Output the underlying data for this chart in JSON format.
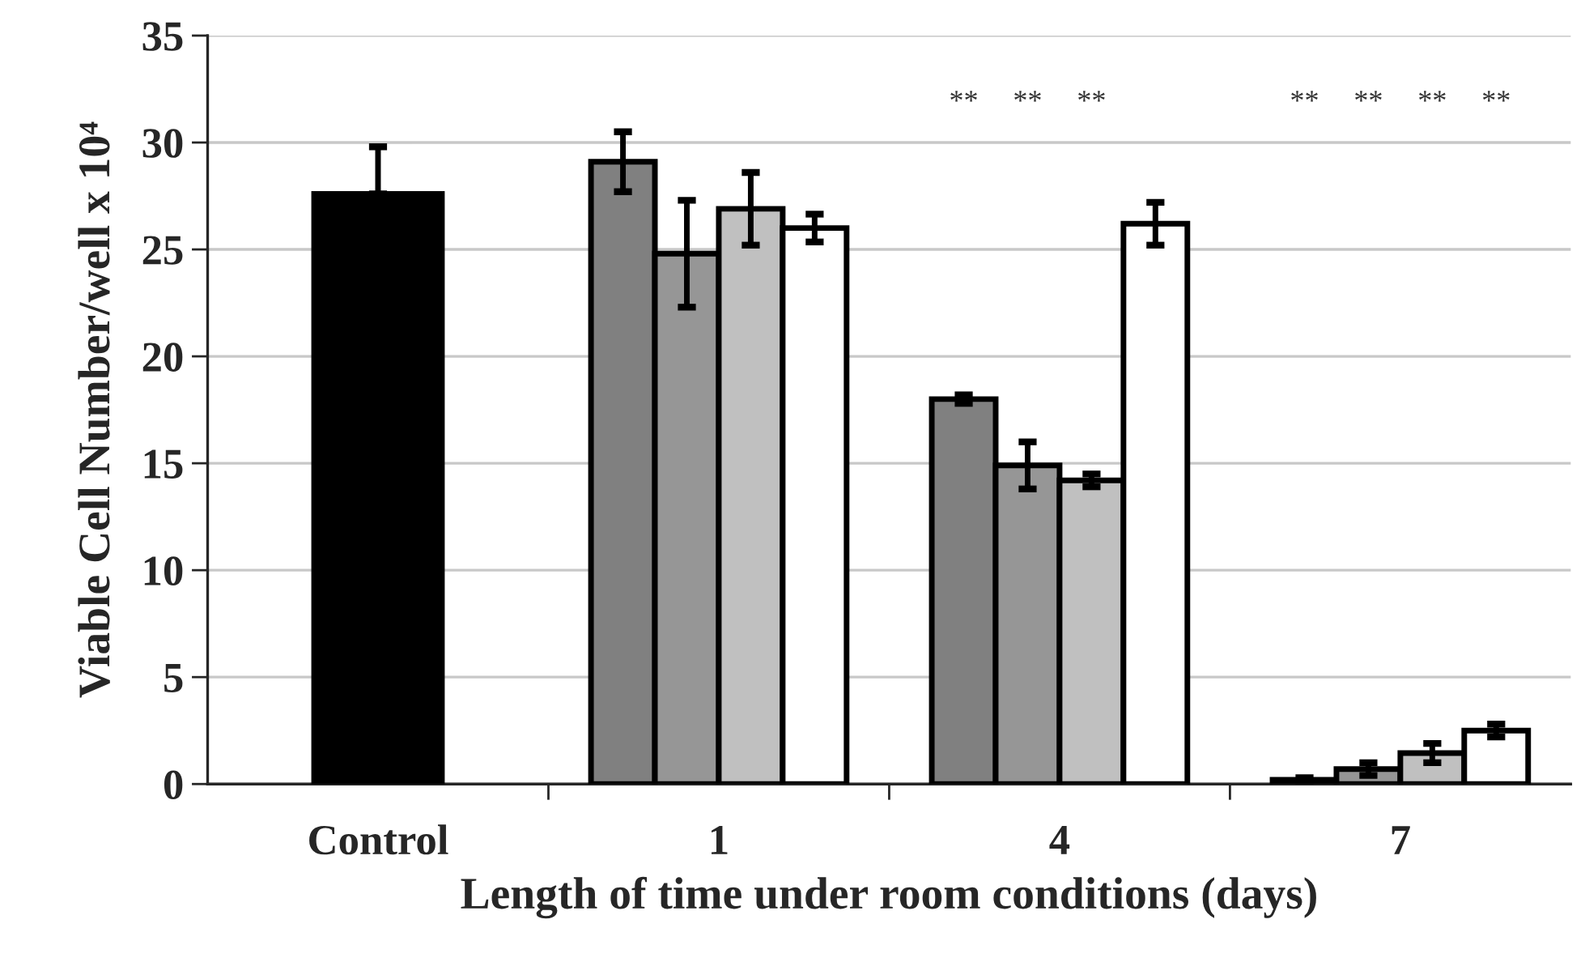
{
  "chart_data": {
    "type": "bar",
    "xlabel": "Length of time under room conditions (days)",
    "ylabel": "Viable Cell Number/well x 10⁴",
    "categories": [
      "Control",
      "1",
      "4",
      "7"
    ],
    "series": [
      {
        "color": "#000000",
        "values": [
          27.6,
          null,
          null,
          null
        ],
        "errors": [
          [
            27.6,
            29.8
          ],
          null,
          null,
          null
        ]
      },
      {
        "color": "#808080",
        "values": [
          null,
          29.1,
          18.0,
          0.2
        ],
        "errors": [
          null,
          1.4,
          0.2,
          0.1
        ]
      },
      {
        "color": "#969696",
        "values": [
          null,
          24.8,
          14.9,
          0.7
        ],
        "errors": [
          null,
          2.5,
          1.1,
          0.3
        ]
      },
      {
        "color": "#c0c0c0",
        "values": [
          null,
          26.9,
          14.2,
          1.45
        ],
        "errors": [
          null,
          1.7,
          0.3,
          0.45
        ]
      },
      {
        "color": "#ffffff",
        "values": [
          null,
          26.0,
          26.2,
          2.5
        ],
        "errors": [
          null,
          0.65,
          1.0,
          0.3
        ]
      }
    ],
    "annotations": [
      "**",
      "**",
      "**",
      "**",
      "**",
      "**",
      "**"
    ],
    "ylim": [
      0,
      35
    ],
    "yticks": [
      0,
      5,
      10,
      15,
      20,
      25,
      30,
      35
    ],
    "grid": "y"
  }
}
